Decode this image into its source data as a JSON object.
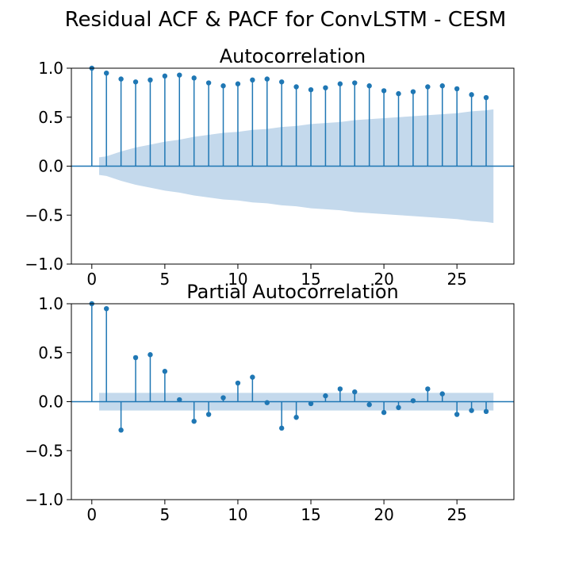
{
  "figure": {
    "suptitle": "Residual ACF & PACF for ConvLSTM - CESM"
  },
  "colors": {
    "stem": "#1f77b4",
    "confidence_band": "#c4d9ec",
    "axes": "#000000",
    "background": "#ffffff"
  },
  "chart_data": [
    {
      "type": "stem",
      "title": "Autocorrelation",
      "xlabel": "",
      "ylabel": "",
      "xlim": [
        -1.4,
        28.9
      ],
      "ylim": [
        -1.0,
        1.0
      ],
      "xticks": [
        "0",
        "5",
        "10",
        "15",
        "20",
        "25"
      ],
      "xtick_values": [
        0,
        5,
        10,
        15,
        20,
        25
      ],
      "yticks": [
        "1.0",
        "0.5",
        "0.0",
        "−0.5",
        "−1.0"
      ],
      "ytick_values": [
        1.0,
        0.5,
        0.0,
        -0.5,
        -1.0
      ],
      "grid": false,
      "lags": [
        0,
        1,
        2,
        3,
        4,
        5,
        6,
        7,
        8,
        9,
        10,
        11,
        12,
        13,
        14,
        15,
        16,
        17,
        18,
        19,
        20,
        21,
        22,
        23,
        24,
        25,
        26,
        27
      ],
      "values": [
        1.0,
        0.95,
        0.89,
        0.86,
        0.88,
        0.92,
        0.93,
        0.9,
        0.85,
        0.82,
        0.84,
        0.88,
        0.89,
        0.86,
        0.81,
        0.78,
        0.8,
        0.84,
        0.85,
        0.82,
        0.77,
        0.74,
        0.76,
        0.81,
        0.82,
        0.79,
        0.73,
        0.7
      ],
      "confidence_band": {
        "x": [
          0.5,
          1,
          2,
          3,
          4,
          5,
          6,
          7,
          8,
          9,
          10,
          11,
          12,
          13,
          14,
          15,
          16,
          17,
          18,
          19,
          20,
          21,
          22,
          23,
          24,
          25,
          26,
          27,
          27.5
        ],
        "upper": [
          0.09,
          0.1,
          0.15,
          0.19,
          0.22,
          0.25,
          0.27,
          0.3,
          0.32,
          0.34,
          0.35,
          0.37,
          0.38,
          0.4,
          0.41,
          0.43,
          0.44,
          0.45,
          0.47,
          0.48,
          0.49,
          0.5,
          0.51,
          0.52,
          0.53,
          0.54,
          0.56,
          0.57,
          0.58
        ]
      }
    },
    {
      "type": "stem",
      "title": "Partial Autocorrelation",
      "xlabel": "",
      "ylabel": "",
      "xlim": [
        -1.4,
        28.9
      ],
      "ylim": [
        -1.0,
        1.0
      ],
      "xticks": [
        "0",
        "5",
        "10",
        "15",
        "20",
        "25"
      ],
      "xtick_values": [
        0,
        5,
        10,
        15,
        20,
        25
      ],
      "yticks": [
        "1.0",
        "0.5",
        "0.0",
        "−0.5",
        "−1.0"
      ],
      "ytick_values": [
        1.0,
        0.5,
        0.0,
        -0.5,
        -1.0
      ],
      "grid": false,
      "lags": [
        0,
        1,
        2,
        3,
        4,
        5,
        6,
        7,
        8,
        9,
        10,
        11,
        12,
        13,
        14,
        15,
        16,
        17,
        18,
        19,
        20,
        21,
        22,
        23,
        24,
        25,
        26,
        27
      ],
      "values": [
        1.0,
        0.95,
        -0.29,
        0.45,
        0.48,
        0.31,
        0.02,
        -0.2,
        -0.13,
        0.04,
        0.19,
        0.25,
        -0.01,
        -0.27,
        -0.16,
        -0.02,
        0.06,
        0.13,
        0.1,
        -0.03,
        -0.11,
        -0.06,
        0.01,
        0.13,
        0.08,
        -0.13,
        -0.09,
        -0.1
      ],
      "confidence_band": {
        "x": [
          0.5,
          27.5
        ],
        "upper": [
          0.09,
          0.09
        ]
      }
    }
  ]
}
